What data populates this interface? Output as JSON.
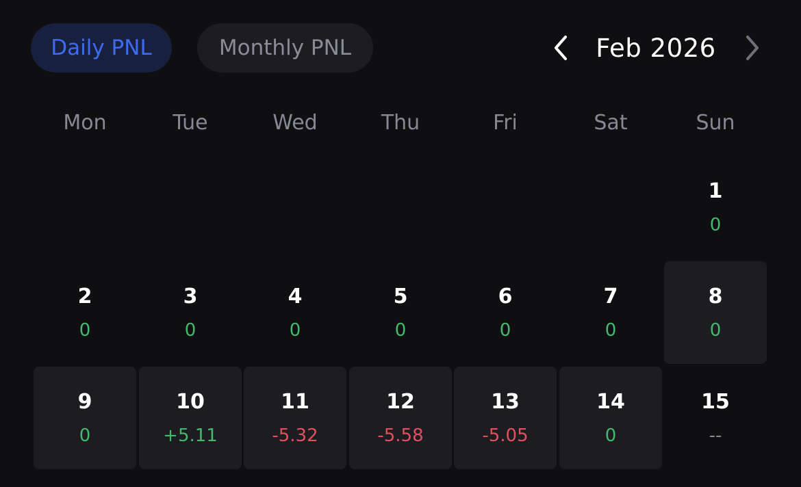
{
  "tabs": {
    "daily_label": "Daily PNL",
    "monthly_label": "Monthly PNL"
  },
  "month_nav": {
    "title": "Feb 2026",
    "prev_icon": "chevron-left-icon",
    "next_icon": "chevron-right-icon"
  },
  "weekdays": [
    "Mon",
    "Tue",
    "Wed",
    "Thu",
    "Fri",
    "Sat",
    "Sun"
  ],
  "colors": {
    "accent": "#3f6bf0",
    "positive": "#44b86d",
    "negative": "#e2505e",
    "muted": "#868894"
  },
  "days": [
    {
      "day": "1",
      "pnl": "0",
      "tone": "pos",
      "highlighted": false
    },
    {
      "day": "2",
      "pnl": "0",
      "tone": "pos",
      "highlighted": false
    },
    {
      "day": "3",
      "pnl": "0",
      "tone": "pos",
      "highlighted": false
    },
    {
      "day": "4",
      "pnl": "0",
      "tone": "pos",
      "highlighted": false
    },
    {
      "day": "5",
      "pnl": "0",
      "tone": "pos",
      "highlighted": false
    },
    {
      "day": "6",
      "pnl": "0",
      "tone": "pos",
      "highlighted": false
    },
    {
      "day": "7",
      "pnl": "0",
      "tone": "pos",
      "highlighted": false
    },
    {
      "day": "8",
      "pnl": "0",
      "tone": "pos",
      "highlighted": true
    },
    {
      "day": "9",
      "pnl": "0",
      "tone": "pos",
      "highlighted": true
    },
    {
      "day": "10",
      "pnl": "+5.11",
      "tone": "pos",
      "highlighted": true
    },
    {
      "day": "11",
      "pnl": "-5.32",
      "tone": "neg",
      "highlighted": true
    },
    {
      "day": "12",
      "pnl": "-5.58",
      "tone": "neg",
      "highlighted": true
    },
    {
      "day": "13",
      "pnl": "-5.05",
      "tone": "neg",
      "highlighted": true
    },
    {
      "day": "14",
      "pnl": "0",
      "tone": "pos",
      "highlighted": true
    },
    {
      "day": "15",
      "pnl": "--",
      "tone": "none",
      "highlighted": false
    }
  ]
}
